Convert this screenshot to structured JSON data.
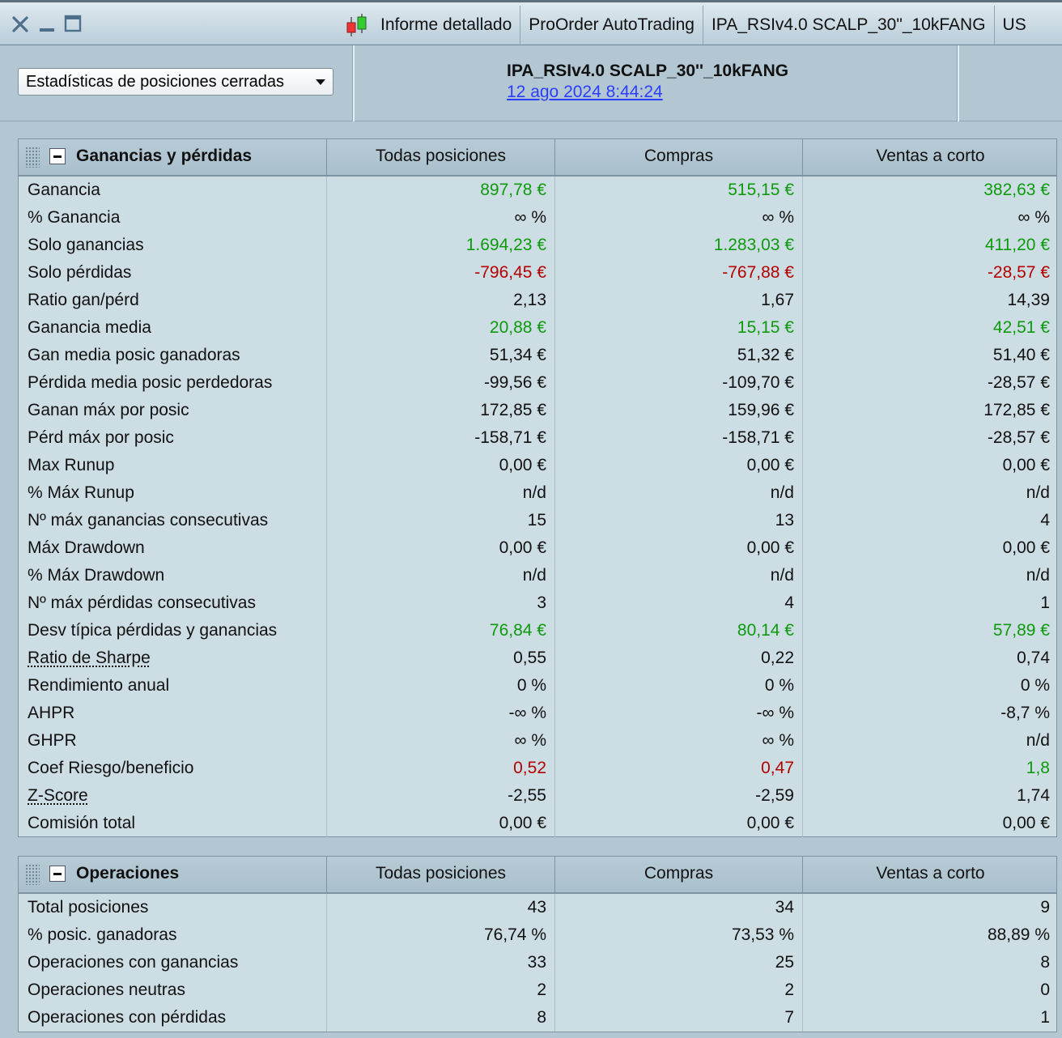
{
  "window": {
    "tabs": [
      "Informe detallado",
      "ProOrder AutoTrading",
      "IPA_RSIv4.0 SCALP_30\"_10kFANG",
      "US"
    ]
  },
  "header": {
    "select_label": "Estadísticas de posiciones cerradas",
    "strategy_name": "IPA_RSIv4.0 SCALP_30''_10kFANG",
    "date": "12 ago 2024 8:44:24"
  },
  "colors": {
    "positive": "#0d9a0d",
    "negative": "#b30000",
    "link": "#2b3dff"
  },
  "pl_table": {
    "title": "Ganancias y pérdidas",
    "columns": [
      "Todas posiciones",
      "Compras",
      "Ventas a corto"
    ],
    "rows": [
      {
        "label": "Ganancia",
        "values": [
          "897,78 €",
          "515,15 €",
          "382,63 €"
        ],
        "colors": [
          "g",
          "g",
          "g"
        ]
      },
      {
        "label": "% Ganancia",
        "values": [
          "∞ %",
          "∞ %",
          "∞ %"
        ],
        "colors": [
          "n",
          "n",
          "n"
        ]
      },
      {
        "label": "Solo ganancias",
        "values": [
          "1.694,23 €",
          "1.283,03 €",
          "411,20 €"
        ],
        "colors": [
          "g",
          "g",
          "g"
        ]
      },
      {
        "label": "Solo pérdidas",
        "values": [
          "-796,45 €",
          "-767,88 €",
          "-28,57 €"
        ],
        "colors": [
          "r",
          "r",
          "r"
        ]
      },
      {
        "label": "Ratio gan/pérd",
        "values": [
          "2,13",
          "1,67",
          "14,39"
        ],
        "colors": [
          "n",
          "n",
          "n"
        ]
      },
      {
        "label": "Ganancia media",
        "values": [
          "20,88 €",
          "15,15 €",
          "42,51 €"
        ],
        "colors": [
          "g",
          "g",
          "g"
        ]
      },
      {
        "label": "Gan media posic ganadoras",
        "values": [
          "51,34 €",
          "51,32 €",
          "51,40 €"
        ],
        "colors": [
          "n",
          "n",
          "n"
        ]
      },
      {
        "label": "Pérdida media posic perdedoras",
        "values": [
          "-99,56 €",
          "-109,70 €",
          "-28,57 €"
        ],
        "colors": [
          "n",
          "n",
          "n"
        ]
      },
      {
        "label": "Ganan máx por posic",
        "values": [
          "172,85 €",
          "159,96 €",
          "172,85 €"
        ],
        "colors": [
          "n",
          "n",
          "n"
        ]
      },
      {
        "label": "Pérd máx por posic",
        "values": [
          "-158,71 €",
          "-158,71 €",
          "-28,57 €"
        ],
        "colors": [
          "n",
          "n",
          "n"
        ]
      },
      {
        "label": "Max Runup",
        "values": [
          "0,00 €",
          "0,00 €",
          "0,00 €"
        ],
        "colors": [
          "n",
          "n",
          "n"
        ]
      },
      {
        "label": "% Máx Runup",
        "values": [
          "n/d",
          "n/d",
          "n/d"
        ],
        "colors": [
          "n",
          "n",
          "n"
        ]
      },
      {
        "label": "Nº máx ganancias consecutivas",
        "values": [
          "15",
          "13",
          "4"
        ],
        "colors": [
          "n",
          "n",
          "n"
        ]
      },
      {
        "label": "Máx Drawdown",
        "values": [
          "0,00 €",
          "0,00 €",
          "0,00 €"
        ],
        "colors": [
          "n",
          "n",
          "n"
        ]
      },
      {
        "label": "% Máx Drawdown",
        "values": [
          "n/d",
          "n/d",
          "n/d"
        ],
        "colors": [
          "n",
          "n",
          "n"
        ]
      },
      {
        "label": "Nº máx pérdidas consecutivas",
        "values": [
          "3",
          "4",
          "1"
        ],
        "colors": [
          "n",
          "n",
          "n"
        ]
      },
      {
        "label": "Desv típica pérdidas y ganancias",
        "values": [
          "76,84 €",
          "80,14 €",
          "57,89 €"
        ],
        "colors": [
          "g",
          "g",
          "g"
        ]
      },
      {
        "label": "Ratio de Sharpe",
        "link": true,
        "values": [
          "0,55",
          "0,22",
          "0,74"
        ],
        "colors": [
          "n",
          "n",
          "n"
        ]
      },
      {
        "label": "Rendimiento anual",
        "values": [
          "0 %",
          "0 %",
          "0 %"
        ],
        "colors": [
          "n",
          "n",
          "n"
        ]
      },
      {
        "label": "AHPR",
        "values": [
          "-∞ %",
          "-∞ %",
          "-8,7 %"
        ],
        "colors": [
          "n",
          "n",
          "n"
        ]
      },
      {
        "label": "GHPR",
        "values": [
          "∞ %",
          "∞ %",
          "n/d"
        ],
        "colors": [
          "n",
          "n",
          "n"
        ]
      },
      {
        "label": "Coef Riesgo/beneficio",
        "values": [
          "0,52",
          "0,47",
          "1,8"
        ],
        "colors": [
          "r",
          "r",
          "g"
        ]
      },
      {
        "label": "Z-Score",
        "link": true,
        "values": [
          "-2,55",
          "-2,59",
          "1,74"
        ],
        "colors": [
          "n",
          "n",
          "n"
        ]
      },
      {
        "label": "Comisión total",
        "values": [
          "0,00 €",
          "0,00 €",
          "0,00 €"
        ],
        "colors": [
          "n",
          "n",
          "n"
        ]
      }
    ]
  },
  "ops_table": {
    "title": "Operaciones",
    "columns": [
      "Todas posiciones",
      "Compras",
      "Ventas a corto"
    ],
    "rows": [
      {
        "label": "Total posiciones",
        "values": [
          "43",
          "34",
          "9"
        ],
        "colors": [
          "n",
          "n",
          "n"
        ]
      },
      {
        "label": "% posic. ganadoras",
        "values": [
          "76,74 %",
          "73,53 %",
          "88,89 %"
        ],
        "colors": [
          "n",
          "n",
          "n"
        ]
      },
      {
        "label": "Operaciones con ganancias",
        "values": [
          "33",
          "25",
          "8"
        ],
        "colors": [
          "n",
          "n",
          "n"
        ]
      },
      {
        "label": "Operaciones neutras",
        "values": [
          "2",
          "2",
          "0"
        ],
        "colors": [
          "n",
          "n",
          "n"
        ]
      },
      {
        "label": "Operaciones con pérdidas",
        "values": [
          "8",
          "7",
          "1"
        ],
        "colors": [
          "n",
          "n",
          "n"
        ]
      }
    ]
  }
}
